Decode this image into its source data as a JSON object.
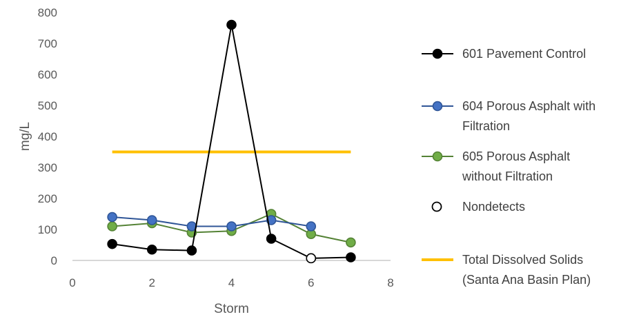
{
  "chart_data": {
    "type": "scatter",
    "xlabel": "Storm",
    "ylabel": "mg/L",
    "xlim": [
      0,
      8
    ],
    "ylim": [
      0,
      800
    ],
    "xticks": [
      "0",
      "2",
      "4",
      "6",
      "8"
    ],
    "yticks": [
      "0",
      "100",
      "200",
      "300",
      "400",
      "500",
      "600",
      "700",
      "800"
    ],
    "grid": false,
    "legend_position": "right",
    "series": [
      {
        "name": "601 Pavement Control",
        "legend_lines": [
          "601 Pavement Control"
        ],
        "color": "#000000",
        "marker_fill": "#000000",
        "x": [
          1,
          2,
          3,
          4,
          5,
          6,
          7
        ],
        "y": [
          53,
          35,
          32,
          760,
          70,
          7,
          10
        ]
      },
      {
        "name": "604 Porous Asphalt with Filtration",
        "legend_lines": [
          "604 Porous Asphalt with",
          "Filtration"
        ],
        "color": "#2F5597",
        "marker_fill": "#4472C4",
        "x": [
          1,
          2,
          3,
          4,
          5,
          6
        ],
        "y": [
          140,
          130,
          110,
          110,
          130,
          110
        ]
      },
      {
        "name": "605 Porous Asphalt without Filtration",
        "legend_lines": [
          "605 Porous Asphalt",
          "without Filtration"
        ],
        "color": "#548235",
        "marker_fill": "#70AD47",
        "x": [
          1,
          2,
          3,
          4,
          5,
          6,
          7
        ],
        "y": [
          110,
          120,
          90,
          95,
          150,
          85,
          58
        ]
      },
      {
        "name": "Nondetects",
        "legend_lines": [
          "Nondetects"
        ],
        "color": "#000000",
        "marker_fill": "#ffffff",
        "marker_only": true,
        "x": [
          6
        ],
        "y": [
          7
        ]
      },
      {
        "name": "Total Dissolved Solids (Santa Ana Basin Plan)",
        "legend_lines": [
          "Total Dissolved Solids",
          "(Santa Ana Basin Plan)"
        ],
        "color": "#FFC000",
        "line_only": true,
        "x": [
          1,
          7
        ],
        "y": [
          350,
          350
        ]
      }
    ]
  }
}
